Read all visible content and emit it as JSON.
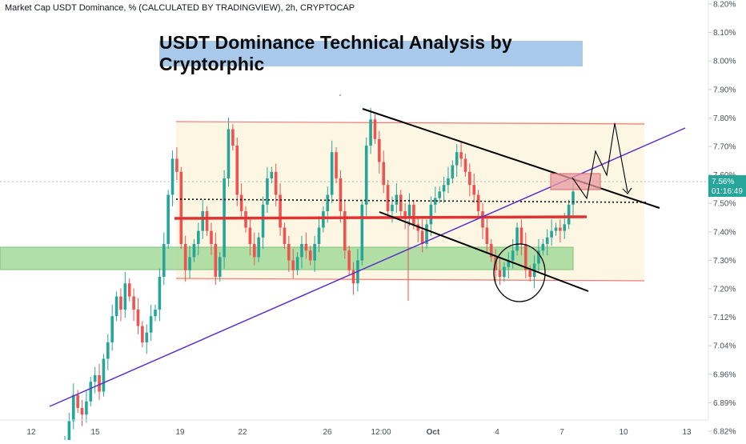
{
  "header": {
    "symbol_line": "Market Cap USDT Dominance, % (CALCULATED BY TRADINGVIEW), 2h, CRYPTOCAP"
  },
  "chart_data": {
    "type": "candlestick",
    "title": "USDT Dominance Technical Analysis by Cryptorphic",
    "y_unit": "%",
    "y_ticks": [
      "8.20%",
      "8.10%",
      "8.00%",
      "7.90%",
      "7.80%",
      "7.70%",
      "7.60%",
      "7.50%",
      "7.40%",
      "7.30%",
      "7.20%",
      "7.12%",
      "7.04%",
      "6.96%",
      "6.89%",
      "6.82%"
    ],
    "x_ticks": [
      "12",
      "15",
      "19",
      "22",
      "26",
      "12:00",
      "Oct",
      "4",
      "7",
      "10",
      "13"
    ],
    "ylim": [
      6.8,
      8.22
    ],
    "current_price": {
      "value": "7.56%",
      "countdown": "01:16:49"
    },
    "candles_close": [
      6.8,
      6.86,
      6.94,
      6.9,
      6.88,
      6.92,
      6.98,
      7.0,
      6.95,
      7.05,
      7.1,
      7.18,
      7.24,
      7.2,
      7.28,
      7.24,
      7.2,
      7.15,
      7.1,
      7.13,
      7.18,
      7.2,
      7.3,
      7.4,
      7.55,
      7.66,
      7.62,
      7.4,
      7.32,
      7.36,
      7.4,
      7.44,
      7.5,
      7.44,
      7.4,
      7.3,
      7.36,
      7.6,
      7.75,
      7.7,
      7.55,
      7.5,
      7.45,
      7.4,
      7.36,
      7.42,
      7.52,
      7.6,
      7.62,
      7.55,
      7.45,
      7.4,
      7.35,
      7.32,
      7.36,
      7.4,
      7.38,
      7.35,
      7.4,
      7.45,
      7.5,
      7.55,
      7.68,
      7.6,
      7.5,
      7.38,
      7.32,
      7.28,
      7.35,
      7.52,
      7.7,
      7.78,
      7.72,
      7.65,
      7.58,
      7.5,
      7.52,
      7.55,
      7.5,
      7.48,
      7.52,
      7.46,
      7.44,
      7.4,
      7.46,
      7.52,
      7.54,
      7.56,
      7.58,
      7.6,
      7.64,
      7.68,
      7.66,
      7.62,
      7.58,
      7.55,
      7.5,
      7.45,
      7.4,
      7.36,
      7.32,
      7.3,
      7.33,
      7.35,
      7.38,
      7.45,
      7.4,
      7.32,
      7.3,
      7.34,
      7.38,
      7.4,
      7.42,
      7.44,
      7.45,
      7.44,
      7.46,
      7.52,
      7.56
    ],
    "green_zone": [
      7.28,
      7.34
    ],
    "range_box": {
      "top": 7.77,
      "bottom": 7.23
    },
    "dotted_resistance": 7.5,
    "red_support": 7.44,
    "marker_box": [
      7.55,
      7.59
    ]
  }
}
